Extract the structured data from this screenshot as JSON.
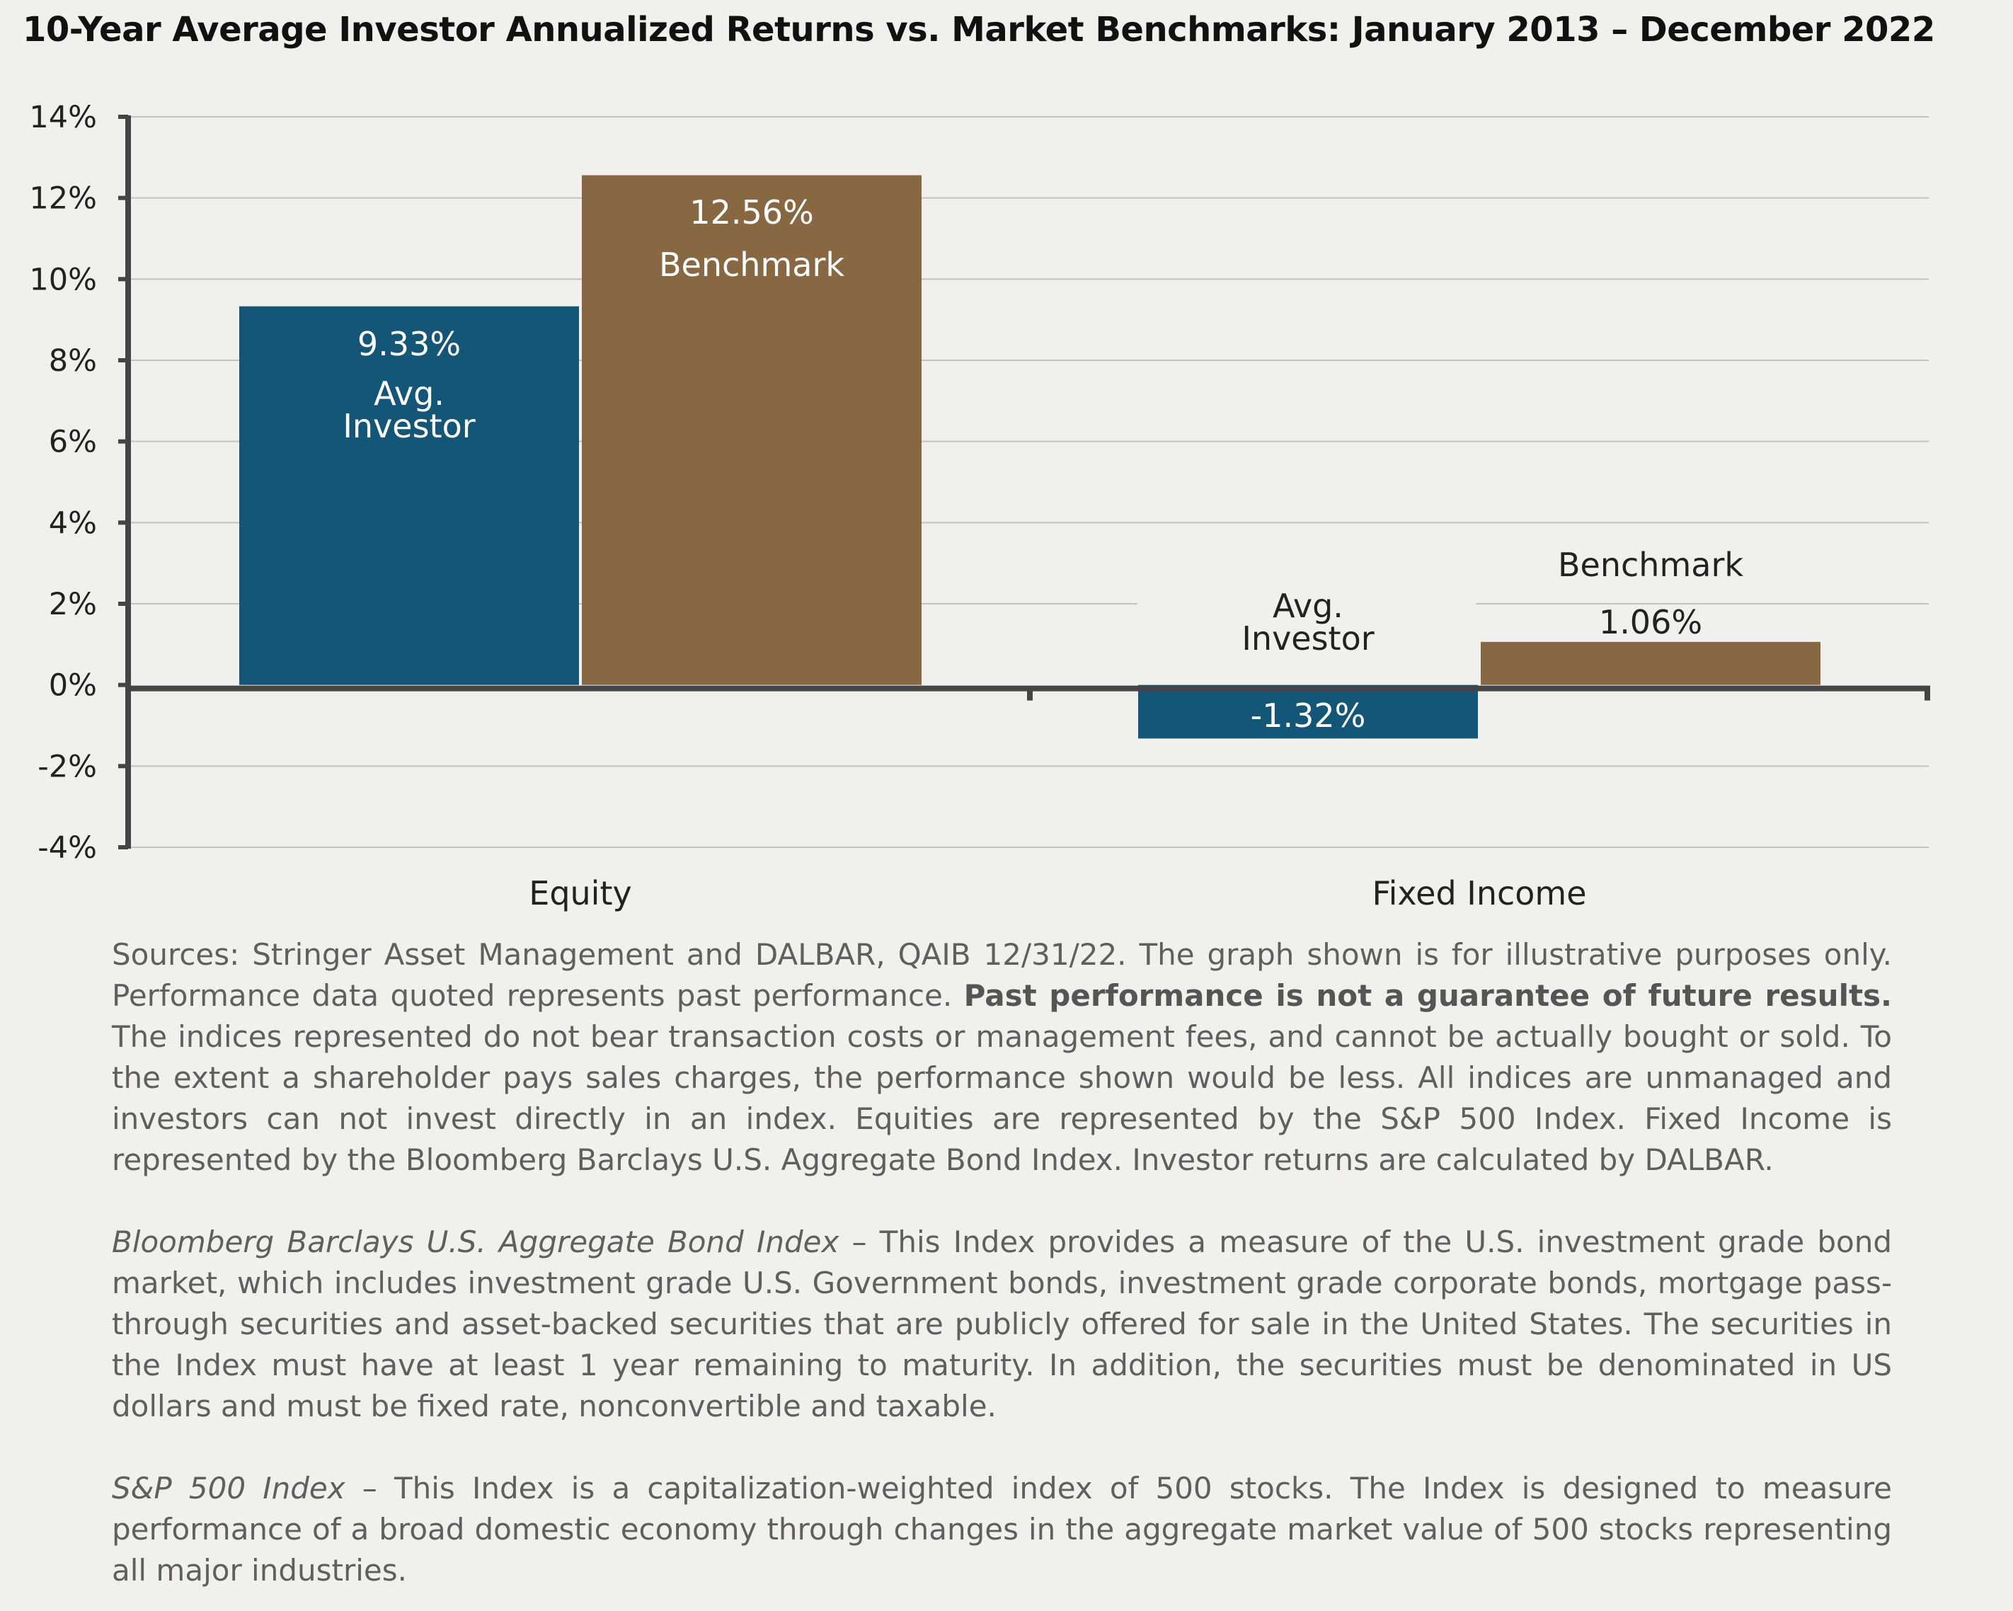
{
  "chart_data": {
    "type": "bar",
    "title": "10-Year Average Investor Annualized Returns vs. Market Benchmarks: January 2013 – December 2022",
    "categories": [
      "Equity",
      "Fixed Income"
    ],
    "series": [
      {
        "name": "Avg. Investor",
        "values": [
          9.33,
          -1.32
        ],
        "labels": [
          "9.33%",
          "-1.32%"
        ],
        "color": "#135677"
      },
      {
        "name": "Benchmark",
        "values": [
          12.56,
          1.06
        ],
        "labels": [
          "12.56%",
          "1.06%"
        ],
        "color": "#876842"
      }
    ],
    "series_text": {
      "investor_line1": "Avg.",
      "investor_line2": "Investor",
      "benchmark": "Benchmark"
    },
    "ylim": [
      -4,
      14
    ],
    "yticks": [
      14,
      12,
      10,
      8,
      6,
      4,
      2,
      0,
      -2,
      -4
    ],
    "ytick_labels": [
      "14%",
      "12%",
      "10%",
      "8%",
      "6%",
      "4%",
      "2%",
      "0%",
      "-2%",
      "-4%"
    ],
    "xlabel": "",
    "ylabel": "",
    "grid": true,
    "legend": "none",
    "axis_color": "#444444",
    "grid_color": "#c2c2c2"
  },
  "notes": {
    "p1_a": "Sources: Stringer Asset Management and DALBAR, QAIB 12/31/22. The graph shown is for illustrative purposes only. Performance data quoted represents past performance. ",
    "p1_bold": "Past performance is not a guarantee of future results.",
    "p1_b": " The indices represented do not bear transaction costs or management fees, and cannot be actually bought or sold. To the extent a shareholder pays sales charges, the performance shown would be less. All indices are unmanaged and investors can not invest directly in an index. Equities are represented by the S&P 500 Index. Fixed Income is represented by the Bloomberg Barclays U.S. Aggregate Bond Index. Investor returns are calculated by DALBAR.",
    "p2_italic": "Bloomberg Barclays U.S. Aggregate Bond Index",
    "p2_text": " – This Index provides a measure of the U.S. investment grade bond market, which includes investment grade U.S. Government bonds, investment grade corporate bonds, mortgage pass-through securities and asset-backed securities that are publicly offered for sale in the United States. The securities in the Index must have at least 1 year remaining to maturity. In addition, the securities must be denominated in US dollars and must be fixed rate, nonconvertible and taxable.",
    "p3_italic": "S&P 500 Index",
    "p3_text": " – This Index is a capitalization-weighted index of 500 stocks. The Index is designed to measure performance of a broad domestic economy through changes in the aggregate market value of 500 stocks representing all major industries."
  }
}
